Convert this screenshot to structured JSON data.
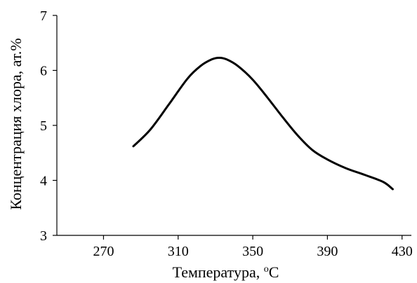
{
  "chart_data": {
    "type": "line",
    "xlabel": "Температура, ",
    "xlabel_sup": "o",
    "xlabel_unit": "C",
    "ylabel": "Концентрация хлора, ат.%",
    "xlim": [
      245,
      435
    ],
    "ylim": [
      3,
      7
    ],
    "xticks": [
      270,
      310,
      350,
      390,
      430
    ],
    "yticks": [
      3,
      4,
      5,
      6,
      7
    ],
    "grid": false,
    "series": [
      {
        "x": [
          286,
          295,
          305,
          315,
          322,
          328,
          332,
          336,
          342,
          350,
          358,
          366,
          374,
          382,
          390,
          400,
          410,
          420,
          425
        ],
        "y": [
          4.62,
          4.92,
          5.38,
          5.85,
          6.08,
          6.2,
          6.23,
          6.2,
          6.08,
          5.83,
          5.5,
          5.15,
          4.82,
          4.55,
          4.38,
          4.22,
          4.1,
          3.97,
          3.84
        ]
      }
    ]
  }
}
